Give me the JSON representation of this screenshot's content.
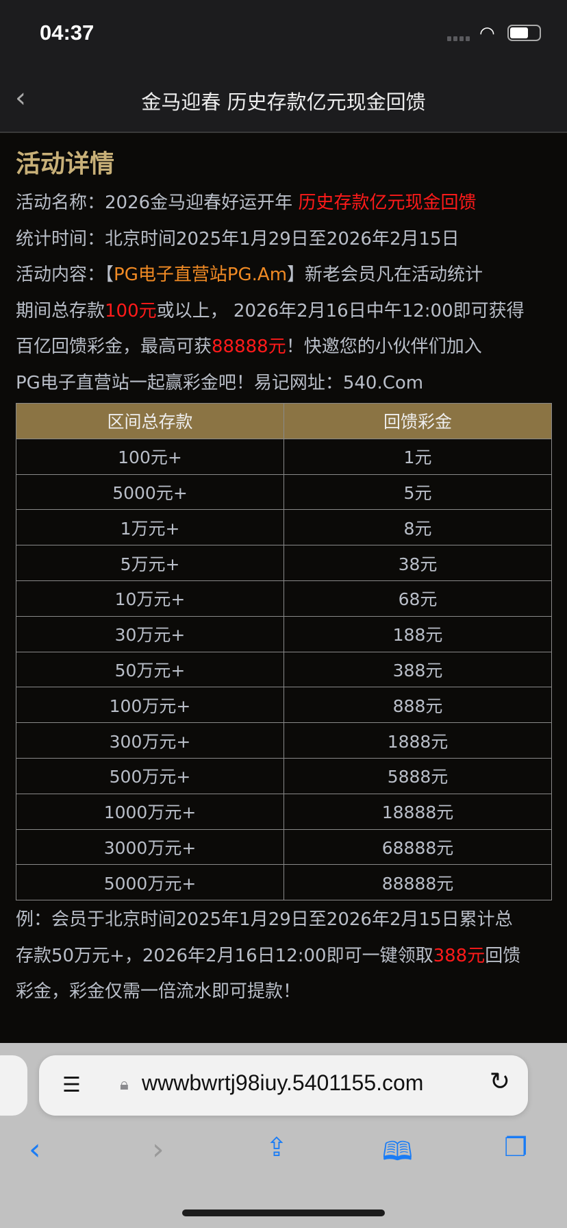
{
  "status": {
    "time": "04:37"
  },
  "nav": {
    "title": "金马迎春 历史存款亿元现金回馈"
  },
  "section": {
    "heading": "活动详情"
  },
  "lines": {
    "name_label": "活动名称：2026金马迎春好运开年 ",
    "name_red": "历史存款亿元现金回馈",
    "time": "统计时间：北京时间2025年1月29日至2026年2月15日",
    "content_a": "活动内容：【",
    "content_orange": "PG电子直营站PG.Am",
    "content_b": "】新老会员凡在活动统计",
    "l4a": "期间总存款",
    "l4red": "100元",
    "l4b": "或以上， 2026年2月16日中午12:00即可获得",
    "l5a": "百亿回馈彩金，最高可获",
    "l5red": "88888元",
    "l5b": "！快邀您的小伙伴们加入",
    "l6": "PG电子直营站一起赢彩金吧！易记网址：540.Com"
  },
  "table": {
    "headers": [
      "区间总存款",
      "回馈彩金"
    ],
    "rows": [
      [
        "100元+",
        "1元"
      ],
      [
        "5000元+",
        "5元"
      ],
      [
        "1万元+",
        "8元"
      ],
      [
        "5万元+",
        "38元"
      ],
      [
        "10万元+",
        "68元"
      ],
      [
        "30万元+",
        "188元"
      ],
      [
        "50万元+",
        "388元"
      ],
      [
        "100万元+",
        "888元"
      ],
      [
        "300万元+",
        "1888元"
      ],
      [
        "500万元+",
        "5888元"
      ],
      [
        "1000万元+",
        "18888元"
      ],
      [
        "3000万元+",
        "68888元"
      ],
      [
        "5000万元+",
        "88888元"
      ]
    ]
  },
  "example": {
    "l1": "例：会员于北京时间2025年1月29日至2026年2月15日累计总",
    "l2a": "存款50万元+，2026年2月16日12:00即可一键领取",
    "l2red": "388元",
    "l2b": "回馈",
    "l3": "彩金，彩金仅需一倍流水即可提款！"
  },
  "browser": {
    "url": "wwwbwrtj98iuy.5401155.com"
  },
  "colors": {
    "accent_gold": "#c8b078",
    "table_header": "#8b7444",
    "highlight_red": "#ff1a1a",
    "highlight_orange": "#f08a24",
    "ios_blue": "#1a7cf5"
  }
}
